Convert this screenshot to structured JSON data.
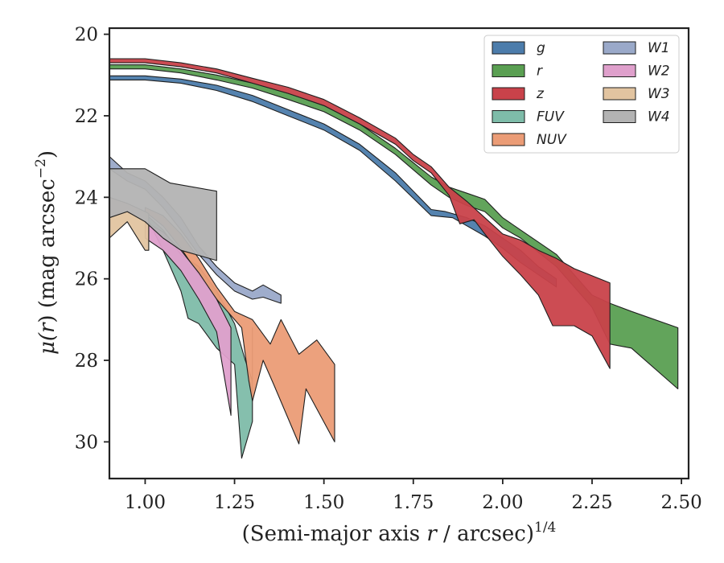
{
  "chart_data": {
    "type": "area",
    "xlabel": "(Semi-major axis r / arcsec)",
    "xlabel_prefix": "(Semi-major axis ",
    "xlabel_var": "r",
    "xlabel_suffix": " / arcsec)",
    "xlabel_exp": "1/4",
    "ylabel": "μ(r) (mag arcsec⁻²)",
    "ylabel_mu": "μ(",
    "ylabel_var": "r",
    "ylabel_mid": ") (mag arcsec",
    "ylabel_exp": "−2",
    "ylabel_end": ")",
    "xlim": [
      0.9,
      2.52
    ],
    "ylim": [
      30.9,
      19.85
    ],
    "y_inverted": true,
    "xticks": [
      1.0,
      1.25,
      1.5,
      1.75,
      2.0,
      2.25,
      2.5
    ],
    "xtick_labels": [
      "1.00",
      "1.25",
      "1.50",
      "1.75",
      "2.00",
      "2.25",
      "2.50"
    ],
    "yticks": [
      20,
      22,
      24,
      26,
      28,
      30
    ],
    "ytick_labels": [
      "20",
      "22",
      "24",
      "26",
      "28",
      "30"
    ],
    "legend_position": "top-right",
    "legend_columns": 2,
    "grid": false,
    "series": [
      {
        "name": "g",
        "color": "#4c7cab",
        "upper": [
          [
            0.9,
            21.02
          ],
          [
            1.0,
            21.02
          ],
          [
            1.1,
            21.1
          ],
          [
            1.2,
            21.25
          ],
          [
            1.3,
            21.5
          ],
          [
            1.4,
            21.85
          ],
          [
            1.5,
            22.2
          ],
          [
            1.6,
            22.7
          ],
          [
            1.7,
            23.4
          ],
          [
            1.8,
            24.3
          ],
          [
            1.84,
            24.35
          ],
          [
            1.9,
            24.5
          ],
          [
            1.95,
            24.7
          ],
          [
            2.0,
            25.0
          ],
          [
            2.05,
            25.3
          ],
          [
            2.1,
            25.7
          ],
          [
            2.15,
            26.0
          ]
        ],
        "lower": [
          [
            0.9,
            21.12
          ],
          [
            1.0,
            21.12
          ],
          [
            1.1,
            21.2
          ],
          [
            1.2,
            21.38
          ],
          [
            1.3,
            21.65
          ],
          [
            1.4,
            22.0
          ],
          [
            1.5,
            22.35
          ],
          [
            1.6,
            22.85
          ],
          [
            1.7,
            23.6
          ],
          [
            1.8,
            24.45
          ],
          [
            1.86,
            24.5
          ],
          [
            1.9,
            24.7
          ],
          [
            1.95,
            24.95
          ],
          [
            2.0,
            25.25
          ],
          [
            2.05,
            25.6
          ],
          [
            2.1,
            25.9
          ],
          [
            2.15,
            26.2
          ]
        ]
      },
      {
        "name": "r",
        "color": "#5a9f52",
        "upper": [
          [
            0.9,
            20.75
          ],
          [
            1.0,
            20.75
          ],
          [
            1.1,
            20.85
          ],
          [
            1.2,
            21.0
          ],
          [
            1.3,
            21.2
          ],
          [
            1.4,
            21.45
          ],
          [
            1.5,
            21.75
          ],
          [
            1.6,
            22.2
          ],
          [
            1.7,
            22.8
          ],
          [
            1.8,
            23.5
          ],
          [
            1.85,
            23.75
          ],
          [
            1.9,
            23.9
          ],
          [
            1.95,
            24.05
          ],
          [
            2.0,
            24.5
          ],
          [
            2.05,
            24.8
          ],
          [
            2.1,
            25.1
          ],
          [
            2.15,
            25.4
          ],
          [
            2.2,
            25.9
          ],
          [
            2.25,
            26.4
          ],
          [
            2.3,
            26.6
          ],
          [
            2.36,
            26.8
          ],
          [
            2.49,
            27.2
          ]
        ],
        "lower": [
          [
            0.9,
            20.85
          ],
          [
            1.0,
            20.85
          ],
          [
            1.1,
            20.95
          ],
          [
            1.2,
            21.12
          ],
          [
            1.3,
            21.32
          ],
          [
            1.4,
            21.6
          ],
          [
            1.5,
            21.9
          ],
          [
            1.6,
            22.35
          ],
          [
            1.7,
            22.95
          ],
          [
            1.8,
            23.7
          ],
          [
            1.85,
            24.0
          ],
          [
            1.9,
            24.2
          ],
          [
            1.95,
            24.35
          ],
          [
            2.0,
            24.75
          ],
          [
            2.05,
            25.0
          ],
          [
            2.1,
            25.35
          ],
          [
            2.15,
            25.7
          ],
          [
            2.2,
            26.2
          ],
          [
            2.25,
            26.7
          ],
          [
            2.3,
            27.6
          ],
          [
            2.36,
            27.7
          ],
          [
            2.49,
            28.7
          ]
        ]
      },
      {
        "name": "z",
        "color": "#c9424a",
        "upper": [
          [
            0.9,
            20.6
          ],
          [
            1.0,
            20.6
          ],
          [
            1.1,
            20.7
          ],
          [
            1.2,
            20.85
          ],
          [
            1.3,
            21.08
          ],
          [
            1.4,
            21.3
          ],
          [
            1.5,
            21.6
          ],
          [
            1.6,
            22.05
          ],
          [
            1.7,
            22.55
          ],
          [
            1.75,
            22.95
          ],
          [
            1.8,
            23.25
          ],
          [
            1.85,
            23.75
          ],
          [
            1.9,
            24.1
          ],
          [
            1.95,
            24.5
          ],
          [
            2.0,
            24.9
          ],
          [
            2.05,
            25.05
          ],
          [
            2.1,
            25.3
          ],
          [
            2.15,
            25.5
          ],
          [
            2.2,
            25.75
          ],
          [
            2.3,
            26.1
          ]
        ],
        "lower": [
          [
            0.9,
            20.7
          ],
          [
            1.0,
            20.7
          ],
          [
            1.1,
            20.8
          ],
          [
            1.2,
            20.95
          ],
          [
            1.3,
            21.2
          ],
          [
            1.4,
            21.45
          ],
          [
            1.5,
            21.75
          ],
          [
            1.6,
            22.2
          ],
          [
            1.7,
            22.7
          ],
          [
            1.75,
            23.1
          ],
          [
            1.8,
            23.4
          ],
          [
            1.85,
            23.95
          ],
          [
            1.88,
            24.65
          ],
          [
            1.92,
            24.55
          ],
          [
            1.95,
            24.9
          ],
          [
            2.0,
            25.45
          ],
          [
            2.05,
            25.9
          ],
          [
            2.1,
            26.4
          ],
          [
            2.14,
            27.15
          ],
          [
            2.2,
            27.15
          ],
          [
            2.25,
            27.4
          ],
          [
            2.3,
            28.2
          ]
        ]
      },
      {
        "name": "FUV",
        "color": "#7ebca9",
        "upper": [
          [
            1.0,
            24.4
          ],
          [
            1.05,
            24.8
          ],
          [
            1.1,
            25.4
          ],
          [
            1.15,
            25.7
          ],
          [
            1.2,
            26.3
          ],
          [
            1.25,
            27.1
          ],
          [
            1.28,
            28.0
          ],
          [
            1.3,
            28.5
          ],
          [
            1.3,
            27.2
          ]
        ],
        "lower": [
          [
            1.0,
            24.4
          ],
          [
            1.05,
            25.3
          ],
          [
            1.1,
            26.3
          ],
          [
            1.12,
            26.97
          ],
          [
            1.15,
            27.1
          ],
          [
            1.2,
            27.7
          ],
          [
            1.25,
            28.1
          ],
          [
            1.27,
            30.4
          ],
          [
            1.3,
            29.5
          ],
          [
            1.3,
            28.9
          ]
        ]
      },
      {
        "name": "NUV",
        "color": "#eb9c76",
        "upper": [
          [
            1.0,
            24.25
          ],
          [
            1.05,
            24.45
          ],
          [
            1.1,
            24.9
          ],
          [
            1.15,
            25.5
          ],
          [
            1.2,
            26.2
          ],
          [
            1.25,
            26.8
          ],
          [
            1.3,
            27.0
          ],
          [
            1.35,
            27.6
          ],
          [
            1.38,
            27.0
          ],
          [
            1.43,
            27.85
          ],
          [
            1.48,
            27.5
          ],
          [
            1.53,
            28.1
          ]
        ],
        "lower": [
          [
            1.0,
            24.35
          ],
          [
            1.05,
            24.7
          ],
          [
            1.1,
            25.25
          ],
          [
            1.15,
            25.9
          ],
          [
            1.2,
            26.5
          ],
          [
            1.25,
            27.0
          ],
          [
            1.27,
            27.2
          ],
          [
            1.29,
            28.5
          ],
          [
            1.3,
            29.0
          ],
          [
            1.33,
            28.0
          ],
          [
            1.36,
            28.6
          ],
          [
            1.43,
            30.05
          ],
          [
            1.45,
            28.7
          ],
          [
            1.53,
            30.0
          ]
        ]
      },
      {
        "name": "W1",
        "color": "#9aa9c9",
        "upper": [
          [
            0.9,
            23.0
          ],
          [
            0.95,
            23.4
          ],
          [
            1.0,
            23.6
          ],
          [
            1.05,
            24.0
          ],
          [
            1.1,
            24.5
          ],
          [
            1.15,
            25.2
          ],
          [
            1.2,
            25.7
          ],
          [
            1.25,
            26.1
          ],
          [
            1.3,
            26.3
          ],
          [
            1.33,
            26.15
          ],
          [
            1.38,
            26.4
          ]
        ],
        "lower": [
          [
            0.9,
            23.3
          ],
          [
            0.95,
            23.6
          ],
          [
            1.0,
            23.8
          ],
          [
            1.05,
            24.25
          ],
          [
            1.1,
            24.8
          ],
          [
            1.15,
            25.4
          ],
          [
            1.2,
            25.9
          ],
          [
            1.25,
            26.3
          ],
          [
            1.3,
            26.5
          ],
          [
            1.33,
            26.45
          ],
          [
            1.38,
            26.6
          ]
        ]
      },
      {
        "name": "W2",
        "color": "#dfa0cc",
        "upper": [
          [
            1.0,
            24.6
          ],
          [
            1.05,
            24.85
          ],
          [
            1.1,
            25.3
          ],
          [
            1.15,
            25.85
          ],
          [
            1.2,
            26.5
          ],
          [
            1.24,
            27.2
          ]
        ],
        "lower": [
          [
            1.0,
            25.0
          ],
          [
            1.05,
            25.3
          ],
          [
            1.1,
            25.8
          ],
          [
            1.15,
            26.5
          ],
          [
            1.2,
            27.3
          ],
          [
            1.24,
            29.35
          ]
        ]
      },
      {
        "name": "W3",
        "color": "#e2c4a0",
        "upper": [
          [
            0.9,
            24.0
          ],
          [
            0.95,
            24.15
          ],
          [
            1.0,
            24.35
          ],
          [
            1.01,
            24.4
          ]
        ],
        "lower": [
          [
            0.9,
            25.0
          ],
          [
            0.95,
            24.6
          ],
          [
            1.0,
            25.3
          ],
          [
            1.01,
            25.3
          ]
        ]
      },
      {
        "name": "W4",
        "color": "#b3b3b3",
        "upper": [
          [
            0.9,
            23.3
          ],
          [
            1.0,
            23.3
          ],
          [
            1.02,
            23.4
          ],
          [
            1.07,
            23.65
          ],
          [
            1.2,
            23.85
          ]
        ],
        "lower": [
          [
            0.9,
            24.5
          ],
          [
            0.95,
            24.35
          ],
          [
            1.0,
            24.6
          ],
          [
            1.05,
            25.0
          ],
          [
            1.1,
            25.3
          ],
          [
            1.2,
            25.55
          ]
        ]
      }
    ]
  }
}
